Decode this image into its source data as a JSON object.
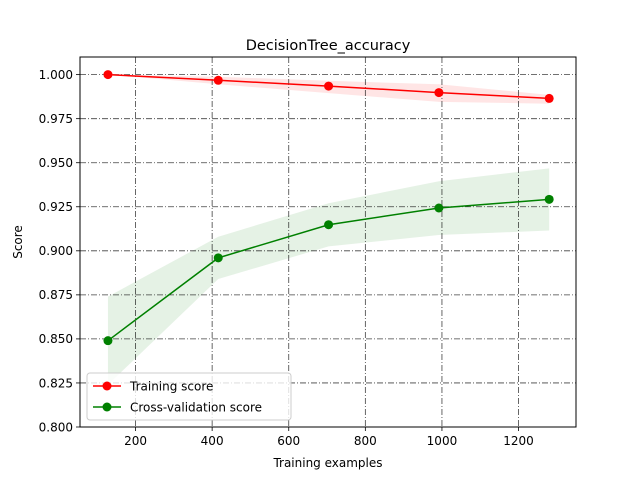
{
  "chart_data": {
    "type": "line",
    "title": "DecisionTree_accuracy",
    "xlabel": "Training examples",
    "ylabel": "Score",
    "xlim": [
      55,
      1350
    ],
    "ylim": [
      0.8,
      1.01
    ],
    "xticks": [
      200,
      400,
      600,
      800,
      1000,
      1200
    ],
    "yticks": [
      0.8,
      0.825,
      0.85,
      0.875,
      0.9,
      0.925,
      0.95,
      0.975,
      1.0
    ],
    "xtick_labels": [
      "200",
      "400",
      "600",
      "800",
      "1000",
      "1200"
    ],
    "ytick_labels": [
      "0.800",
      "0.825",
      "0.850",
      "0.875",
      "0.900",
      "0.925",
      "0.950",
      "0.975",
      "1.000"
    ],
    "grid": true,
    "legend_position": "lower-left",
    "x": [
      128,
      416,
      704,
      992,
      1280
    ],
    "series": [
      {
        "name": "Training score",
        "color": "#ff0000",
        "fill_color": "#ff0000",
        "values": [
          1.0,
          0.9968,
          0.9935,
          0.9898,
          0.9865
        ],
        "band_lower": [
          1.0,
          0.9945,
          0.9895,
          0.9845,
          0.9835
        ],
        "band_upper": [
          1.0,
          0.9988,
          0.9965,
          0.9945,
          0.9885
        ]
      },
      {
        "name": "Cross-validation score",
        "color": "#008000",
        "fill_color": "#008000",
        "values": [
          0.849,
          0.896,
          0.9148,
          0.9243,
          0.9292
        ],
        "band_lower": [
          0.824,
          0.884,
          0.9025,
          0.909,
          0.9115
        ],
        "band_upper": [
          0.874,
          0.908,
          0.927,
          0.9395,
          0.9468
        ]
      }
    ]
  }
}
